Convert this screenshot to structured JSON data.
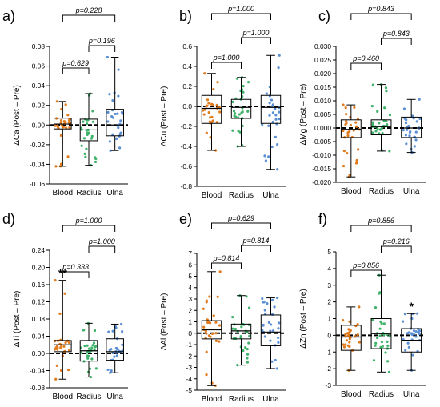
{
  "colors": {
    "blood": "#E07B1E",
    "radius": "#3FB36A",
    "ulna": "#5A8FD6"
  },
  "chart_data": [
    {
      "type": "box",
      "panel": "a)",
      "ylabel": "ΔCa (Post – Pre)",
      "ylim": [
        -0.06,
        0.08
      ],
      "yticks": [
        -0.06,
        -0.04,
        -0.02,
        0.0,
        0.02,
        0.04,
        0.06,
        0.08
      ],
      "tick_labels": [
        "-0.06",
        "-0.04",
        "-0.02",
        "0.00",
        "0.02",
        "0.04",
        "0.06",
        "0.08"
      ],
      "categories": [
        "Blood",
        "Radius",
        "Ulna"
      ],
      "boxes": [
        {
          "min": -0.042,
          "q1": -0.004,
          "median": 0.001,
          "q3": 0.007,
          "max": 0.024
        },
        {
          "min": -0.041,
          "q1": -0.016,
          "median": -0.005,
          "q3": 0.006,
          "max": 0.032
        },
        {
          "min": -0.026,
          "q1": -0.011,
          "median": 0.0,
          "q3": 0.016,
          "max": 0.069
        }
      ],
      "brackets": [
        {
          "from": 0,
          "to": 1,
          "label": "p=0.629"
        },
        {
          "from": 1,
          "to": 2,
          "label": "p=0.196"
        },
        {
          "from": 0,
          "to": 2,
          "label": "p=0.228"
        }
      ],
      "stars": []
    },
    {
      "type": "box",
      "panel": "b)",
      "ylabel": "ΔCu (Post – Pre)",
      "ylim": [
        -0.8,
        0.6
      ],
      "yticks": [
        -0.8,
        -0.6,
        -0.4,
        -0.2,
        0.0,
        0.2,
        0.4,
        0.6
      ],
      "tick_labels": [
        "-0.8",
        "-0.6",
        "-0.4",
        "-0.2",
        "0.0",
        "0.2",
        "0.4",
        "0.6"
      ],
      "categories": [
        "Blood",
        "Radius",
        "Ulna"
      ],
      "boxes": [
        {
          "min": -0.44,
          "q1": -0.17,
          "median": -0.02,
          "q3": 0.11,
          "max": 0.33
        },
        {
          "min": -0.4,
          "q1": -0.12,
          "median": -0.01,
          "q3": 0.07,
          "max": 0.29
        },
        {
          "min": -0.63,
          "q1": -0.17,
          "median": -0.01,
          "q3": 0.11,
          "max": 0.51
        }
      ],
      "brackets": [
        {
          "from": 0,
          "to": 1,
          "label": "p=1.000"
        },
        {
          "from": 1,
          "to": 2,
          "label": "p=1.000"
        },
        {
          "from": 0,
          "to": 2,
          "label": "p=1.000"
        }
      ],
      "stars": []
    },
    {
      "type": "box",
      "panel": "c)",
      "ylabel": "ΔMg (Post – Pre)",
      "ylim": [
        -0.02,
        0.03
      ],
      "yticks": [
        -0.02,
        -0.015,
        -0.01,
        -0.005,
        0.0,
        0.005,
        0.01,
        0.015,
        0.02,
        0.025,
        0.03
      ],
      "tick_labels": [
        "-0.020",
        "-0.015",
        "-0.010",
        "-0.005",
        "0.000",
        "0.005",
        "0.010",
        "0.015",
        "0.020",
        "0.025",
        "0.030"
      ],
      "categories": [
        "Blood",
        "Radius",
        "Ulna"
      ],
      "boxes": [
        {
          "min": -0.018,
          "q1": -0.0035,
          "median": -0.0005,
          "q3": 0.003,
          "max": 0.0085
        },
        {
          "min": -0.0085,
          "q1": -0.0025,
          "median": 0.0005,
          "q3": 0.003,
          "max": 0.016
        },
        {
          "min": -0.009,
          "q1": -0.0035,
          "median": 0.0,
          "q3": 0.004,
          "max": 0.0105
        }
      ],
      "brackets": [
        {
          "from": 0,
          "to": 1,
          "label": "p=0.460"
        },
        {
          "from": 1,
          "to": 2,
          "label": "p=0.843"
        },
        {
          "from": 0,
          "to": 2,
          "label": "p=0.843"
        }
      ],
      "stars": []
    },
    {
      "type": "box",
      "panel": "d)",
      "ylabel": "ΔTi (Post – Pre)",
      "ylim": [
        -0.08,
        0.24
      ],
      "yticks": [
        -0.08,
        -0.04,
        0.0,
        0.04,
        0.08,
        0.12,
        0.16,
        0.2,
        0.24
      ],
      "tick_labels": [
        "-0.08",
        "-0.04",
        "0.00",
        "0.04",
        "0.08",
        "0.12",
        "0.16",
        "0.20",
        "0.24"
      ],
      "categories": [
        "Blood",
        "Radius",
        "Ulna"
      ],
      "boxes": [
        {
          "min": -0.06,
          "q1": 0.004,
          "median": 0.02,
          "q3": 0.03,
          "max": 0.17
        },
        {
          "min": -0.055,
          "q1": -0.018,
          "median": 0.006,
          "q3": 0.03,
          "max": 0.07
        },
        {
          "min": -0.045,
          "q1": -0.016,
          "median": 0.004,
          "q3": 0.034,
          "max": 0.068
        }
      ],
      "brackets": [
        {
          "from": 0,
          "to": 1,
          "label": "p=0.333"
        },
        {
          "from": 1,
          "to": 2,
          "label": "p=1.000"
        },
        {
          "from": 0,
          "to": 2,
          "label": "p=1.000"
        }
      ],
      "stars": [
        {
          "category": 0,
          "label": "**"
        }
      ]
    },
    {
      "type": "box",
      "panel": "e)",
      "ylabel": "ΔAl (Post – Pre)",
      "ylim": [
        -5,
        7
      ],
      "yticks": [
        -5,
        -4,
        -3,
        -2,
        -1,
        0,
        1,
        2,
        3,
        4,
        5,
        6,
        7
      ],
      "tick_labels": [
        "-5",
        "-4",
        "-3",
        "-2",
        "-1",
        "0",
        "1",
        "2",
        "3",
        "4",
        "5",
        "6",
        "7"
      ],
      "categories": [
        "Blood",
        "Radius",
        "Ulna"
      ],
      "boxes": [
        {
          "min": -4.6,
          "q1": -0.5,
          "median": 0.3,
          "q3": 1.1,
          "max": 5.4
        },
        {
          "min": -2.8,
          "q1": -0.5,
          "median": 0.2,
          "q3": 0.8,
          "max": 3.3
        },
        {
          "min": -3.1,
          "q1": -1.1,
          "median": 0.1,
          "q3": 1.6,
          "max": 3.1
        }
      ],
      "brackets": [
        {
          "from": 0,
          "to": 1,
          "label": "p=0.814"
        },
        {
          "from": 1,
          "to": 2,
          "label": "p=0.814"
        },
        {
          "from": 0,
          "to": 2,
          "label": "p=0.629"
        }
      ],
      "stars": []
    },
    {
      "type": "box",
      "panel": "f)",
      "ylabel": "ΔZn (Post – Pre)",
      "ylim": [
        -3,
        5
      ],
      "yticks": [
        -3,
        -2,
        -1,
        0,
        1,
        2,
        3,
        4,
        5
      ],
      "tick_labels": [
        "-3",
        "-2",
        "-1",
        "0",
        "1",
        "2",
        "3",
        "4",
        "5"
      ],
      "categories": [
        "Blood",
        "Radius",
        "Ulna"
      ],
      "boxes": [
        {
          "min": -2.1,
          "q1": -0.9,
          "median": -0.1,
          "q3": 0.6,
          "max": 1.7
        },
        {
          "min": -2.2,
          "q1": -0.8,
          "median": 0.1,
          "q3": 1.0,
          "max": 3.6
        },
        {
          "min": -2.1,
          "q1": -1.0,
          "median": -0.3,
          "q3": 0.4,
          "max": 1.3
        }
      ],
      "brackets": [
        {
          "from": 0,
          "to": 1,
          "label": "p=0.856"
        },
        {
          "from": 1,
          "to": 2,
          "label": "p=0.216"
        },
        {
          "from": 0,
          "to": 2,
          "label": "p=0.856"
        }
      ],
      "stars": [
        {
          "category": 2,
          "label": "*"
        }
      ]
    }
  ]
}
